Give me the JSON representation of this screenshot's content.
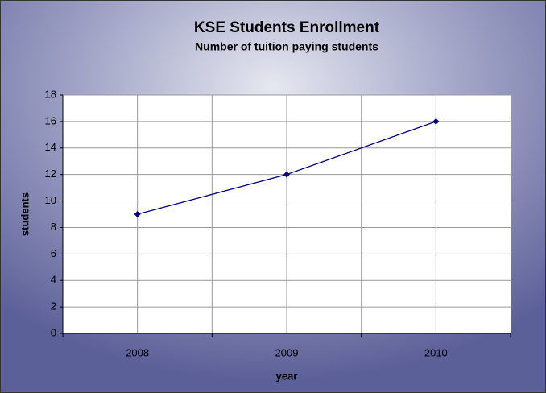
{
  "chart_data": {
    "type": "line",
    "title": "KSE Students Enrollment",
    "subtitle": "Number of tuition paying students",
    "x_label": "year",
    "y_label": "students",
    "categories": [
      "2008",
      "2009",
      "2010"
    ],
    "series": [
      {
        "name": "students",
        "color": "#000080",
        "values": [
          9,
          12,
          16
        ]
      }
    ],
    "ylim": [
      0,
      18
    ],
    "yticks": [
      0,
      2,
      4,
      6,
      8,
      10,
      12,
      14,
      16,
      18
    ],
    "grid": true
  }
}
